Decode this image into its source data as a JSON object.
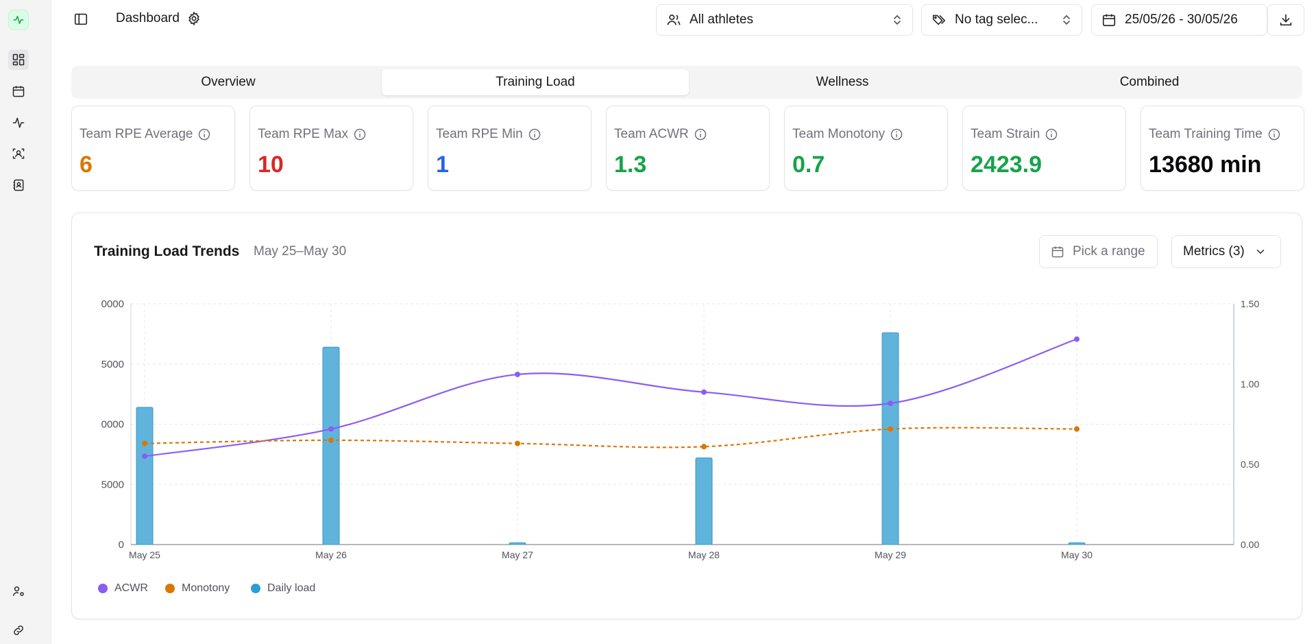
{
  "header": {
    "title": "Dashboard",
    "athletes_select": "All athletes",
    "tag_select": "No tag selec...",
    "date_range": "25/05/26 - 30/05/26"
  },
  "tabs": [
    {
      "label": "Overview",
      "active": false
    },
    {
      "label": "Training Load",
      "active": true
    },
    {
      "label": "Wellness",
      "active": false
    },
    {
      "label": "Combined",
      "active": false
    }
  ],
  "kpis": [
    {
      "label": "Team RPE Average",
      "value": "6",
      "color": "#d97706"
    },
    {
      "label": "Team RPE Max",
      "value": "10",
      "color": "#dc2626"
    },
    {
      "label": "Team RPE Min",
      "value": "1",
      "color": "#2563eb"
    },
    {
      "label": "Team ACWR",
      "value": "1.3",
      "color": "#16a34a"
    },
    {
      "label": "Team Monotony",
      "value": "0.7",
      "color": "#16a34a"
    },
    {
      "label": "Team Strain",
      "value": "2423.9",
      "color": "#16a34a"
    },
    {
      "label": "Team Training Time",
      "value": "13680 min",
      "color": "#09090b"
    }
  ],
  "trends": {
    "title": "Training Load Trends",
    "subtitle": "May 25–May 30",
    "pick_range": "Pick a range",
    "metrics_button": "Metrics (3)"
  },
  "chart_data": {
    "type": "bar",
    "categories": [
      "May 25",
      "May 26",
      "May 27",
      "May 28",
      "May 29",
      "May 30"
    ],
    "left_axis_ticks": [
      "0000",
      "5000",
      "0000",
      "5000",
      "0"
    ],
    "right_axis_ticks": [
      "1.50",
      "1.00",
      "0.50",
      "0.00"
    ],
    "ylim_right": [
      0,
      1.5
    ],
    "left_axis_clipped_max_estimate": 20000,
    "series": [
      {
        "name": "Daily load",
        "type": "bar",
        "axis": "left",
        "color": "#60b4dc",
        "values": [
          11400,
          16400,
          150,
          7200,
          17600,
          150
        ]
      },
      {
        "name": "ACWR",
        "type": "line",
        "axis": "right",
        "color": "#8b5cf6",
        "values": [
          0.55,
          0.72,
          1.06,
          0.95,
          0.88,
          1.28
        ]
      },
      {
        "name": "Monotony",
        "type": "line",
        "axis": "right",
        "dashed": true,
        "color": "#d97706",
        "values": [
          0.63,
          0.65,
          0.63,
          0.61,
          0.72,
          0.72
        ]
      }
    ],
    "legend": [
      "ACWR",
      "Monotony",
      "Daily load"
    ],
    "legend_position": "bottom-left",
    "grid": true
  }
}
